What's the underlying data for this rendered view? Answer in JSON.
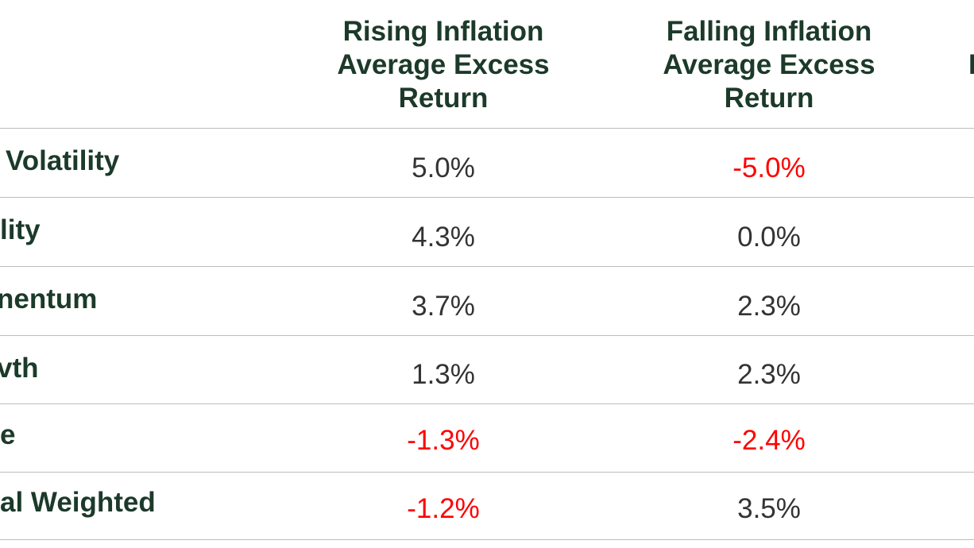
{
  "chart_data": {
    "type": "table",
    "columns": [
      {
        "lines": [
          "Rising Inflation",
          "Average Excess",
          "Return"
        ]
      },
      {
        "lines": [
          "Falling Inflation",
          "Average Excess",
          "Return"
        ]
      },
      {
        "lines": [
          "I"
        ]
      }
    ],
    "rows": [
      {
        "label": "Volatility",
        "rising": "5.0%",
        "falling": "-5.0%"
      },
      {
        "label": "lity",
        "rising": "4.3%",
        "falling": "0.0%"
      },
      {
        "label": "nentum",
        "rising": "3.7%",
        "falling": "2.3%"
      },
      {
        "label": "vth",
        "rising": "1.3%",
        "falling": "2.3%"
      },
      {
        "label": "e",
        "rising": "-1.3%",
        "falling": "-2.4%"
      },
      {
        "label": "al Weighted",
        "rising": "-1.2%",
        "falling": "3.5%"
      }
    ]
  },
  "colors": {
    "header_text": "#1c3a2a",
    "positive_text": "#333333",
    "negative_text": "#ff0000",
    "rule": "#bdbdbd"
  }
}
